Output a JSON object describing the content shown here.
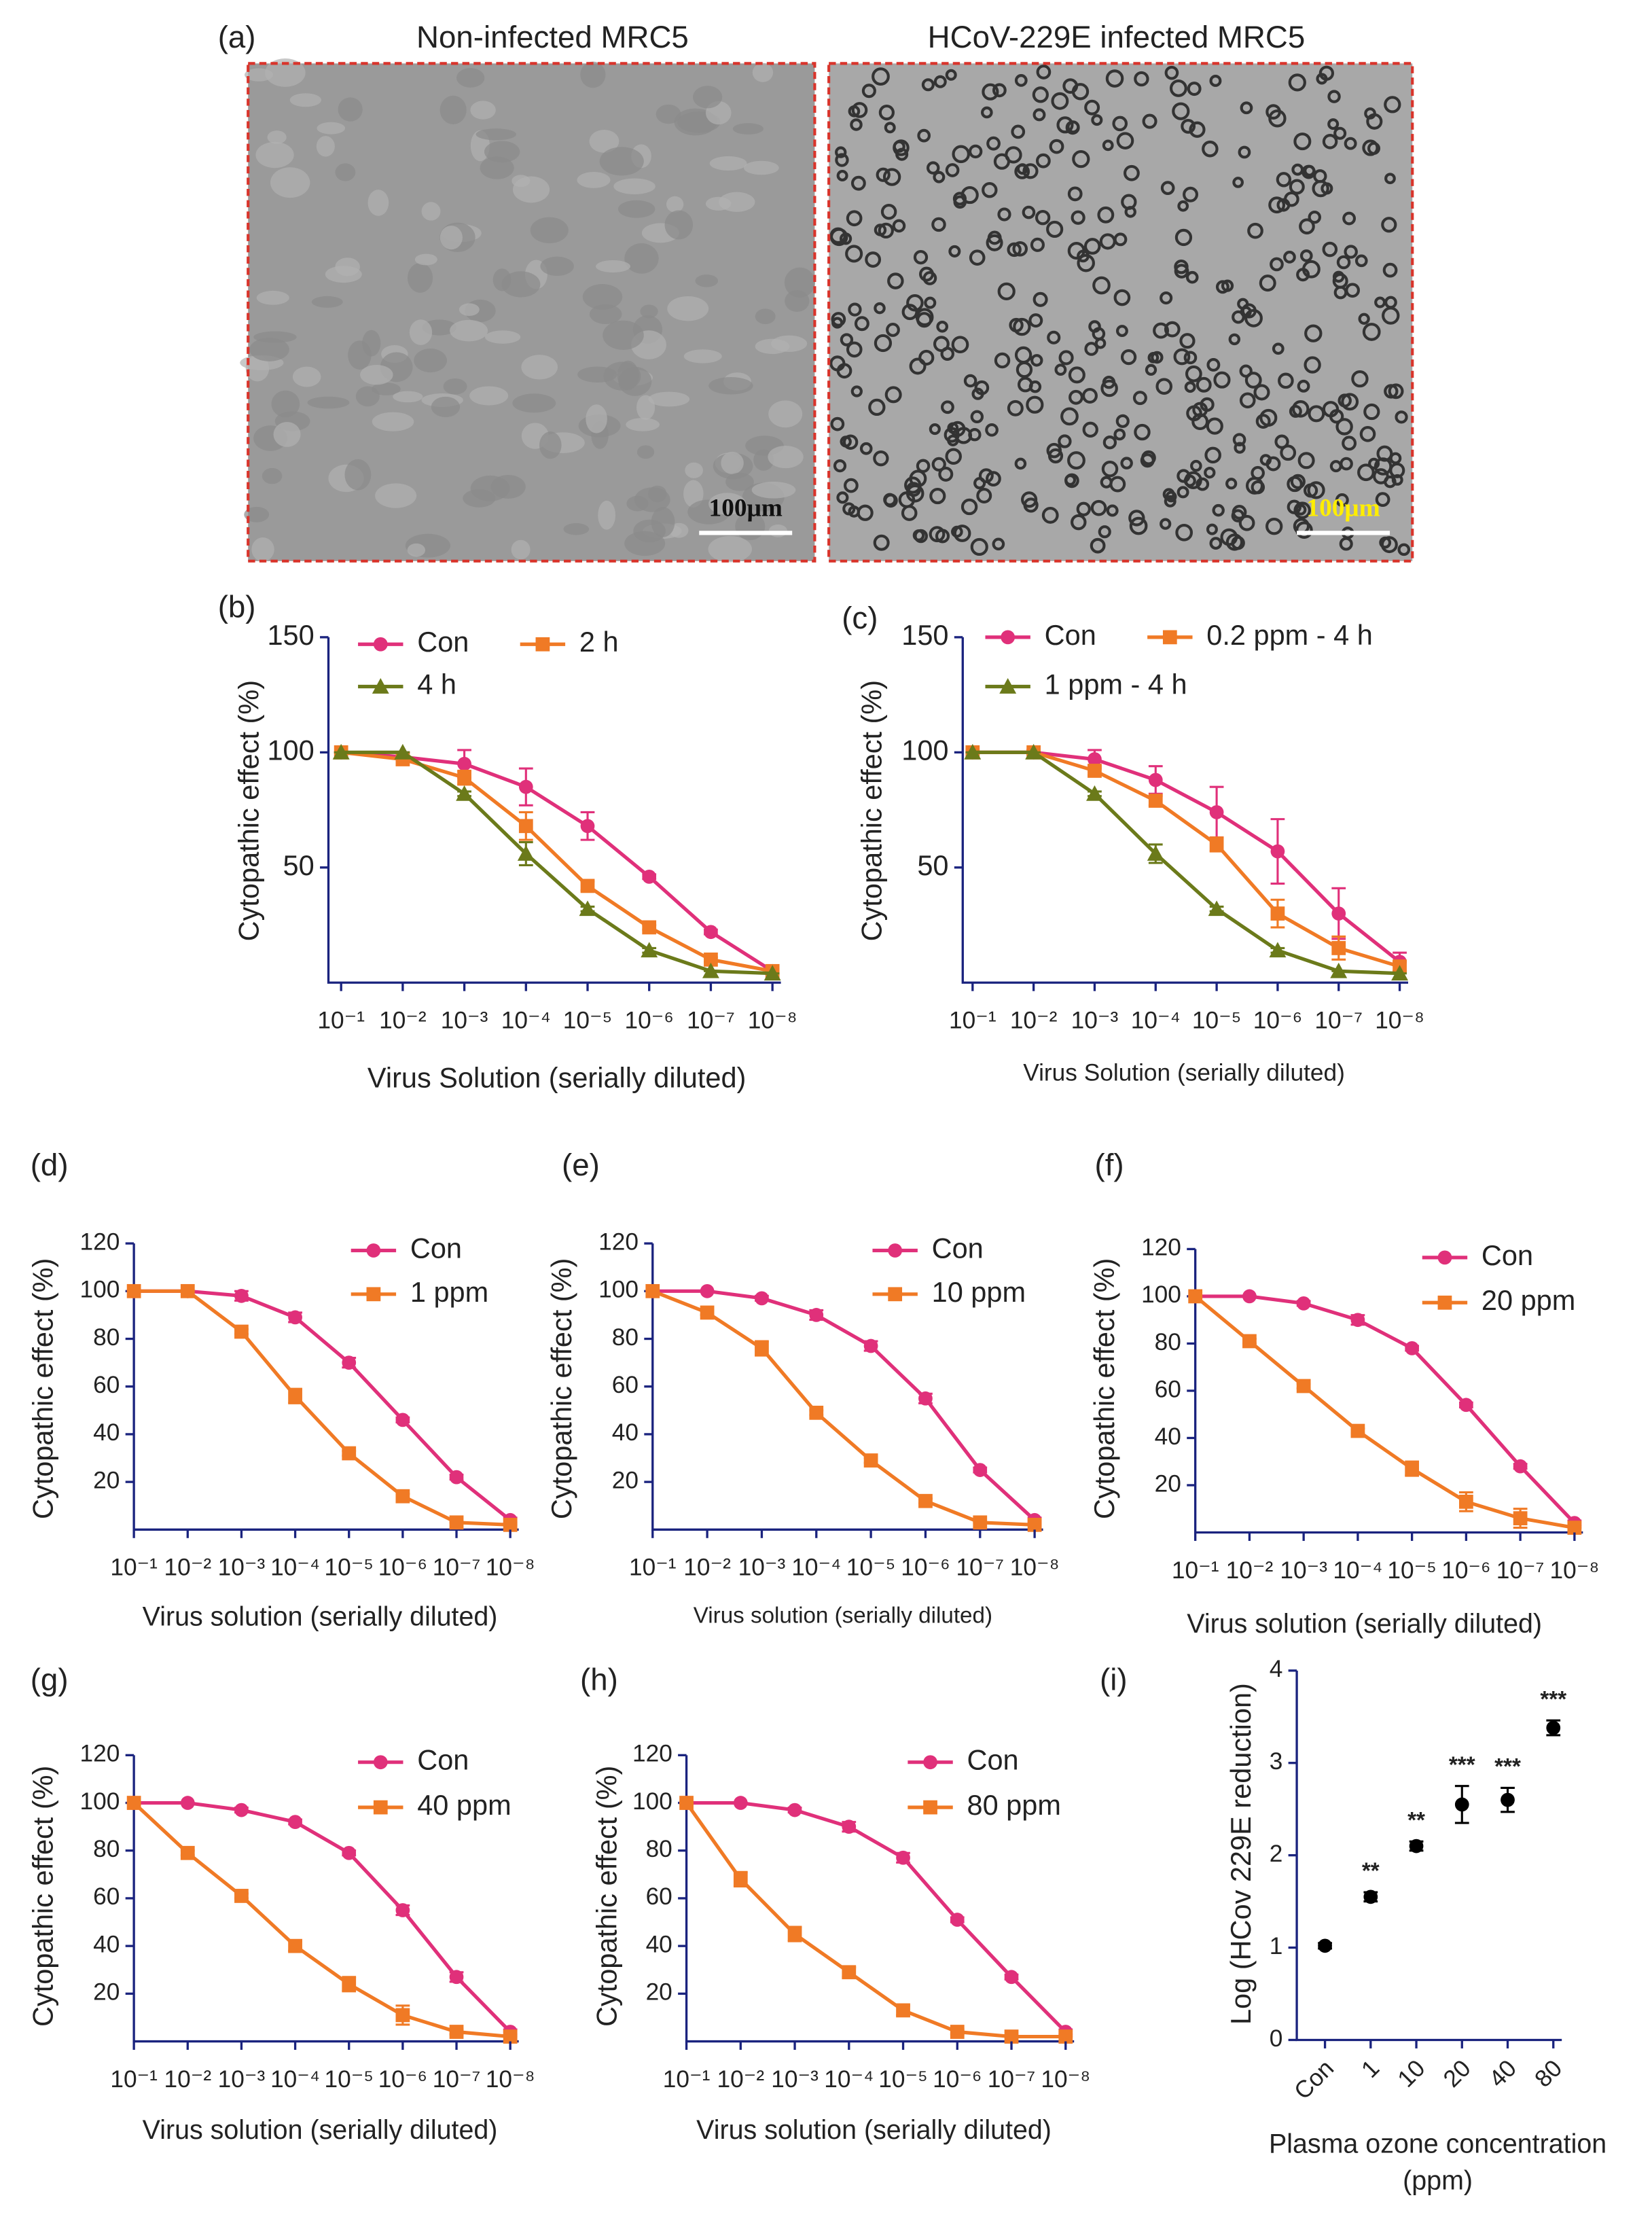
{
  "panel_a": {
    "label": "(a)",
    "images": [
      {
        "title": "Non-infected MRC5",
        "scale_bar": "100μm"
      },
      {
        "title": "HCoV-229E infected MRC5",
        "scale_bar": "100μm"
      }
    ]
  },
  "chart_data": [
    {
      "type": "line",
      "panel": "(b)",
      "ylabel": "Cytopathic effect (%)",
      "xlabel": "Virus Solution (serially diluted)",
      "categories": [
        "10⁻¹",
        "10⁻²",
        "10⁻³",
        "10⁻⁴",
        "10⁻⁵",
        "10⁻⁶",
        "10⁻⁷",
        "10⁻⁸"
      ],
      "ylim": [
        0,
        150
      ],
      "yticks": [
        50,
        100,
        150
      ],
      "series": [
        {
          "name": "Con",
          "color": "#e0307a",
          "marker": "circle",
          "values": [
            100,
            98,
            95,
            85,
            68,
            46,
            22,
            5
          ],
          "errors": [
            0,
            2,
            6,
            8,
            6,
            1,
            1,
            1
          ]
        },
        {
          "name": "2 h",
          "color": "#f07a25",
          "marker": "square",
          "values": [
            100,
            97,
            89,
            68,
            42,
            24,
            10,
            5
          ],
          "errors": [
            0,
            1,
            3,
            6,
            2,
            1,
            1,
            0
          ]
        },
        {
          "name": "4 h",
          "color": "#6b7a1a",
          "marker": "triangle",
          "values": [
            100,
            100,
            82,
            56,
            32,
            14,
            5,
            4
          ],
          "errors": [
            0,
            0,
            1,
            5,
            1,
            1,
            0,
            0
          ]
        }
      ]
    },
    {
      "type": "line",
      "panel": "(c)",
      "ylabel": "Cytopathic effect (%)",
      "xlabel": "Virus Solution (serially diluted)",
      "categories": [
        "10⁻¹",
        "10⁻²",
        "10⁻³",
        "10⁻⁴",
        "10⁻⁵",
        "10⁻⁶",
        "10⁻⁷",
        "10⁻⁸"
      ],
      "ylim": [
        0,
        150
      ],
      "yticks": [
        50,
        100,
        150
      ],
      "series": [
        {
          "name": "Con",
          "color": "#e0307a",
          "marker": "circle",
          "values": [
            100,
            100,
            97,
            88,
            74,
            57,
            30,
            9
          ],
          "errors": [
            0,
            1,
            4,
            6,
            11,
            14,
            11,
            4
          ]
        },
        {
          "name": "0.2 ppm - 4 h",
          "color": "#f07a25",
          "marker": "square",
          "values": [
            100,
            100,
            92,
            79,
            60,
            30,
            15,
            7
          ],
          "errors": [
            0,
            1,
            2,
            2,
            3,
            6,
            5,
            2
          ]
        },
        {
          "name": "1 ppm - 4 h",
          "color": "#6b7a1a",
          "marker": "triangle",
          "values": [
            100,
            100,
            82,
            56,
            32,
            14,
            5,
            4
          ],
          "errors": [
            0,
            0,
            1,
            4,
            1,
            1,
            0,
            0
          ]
        }
      ]
    },
    {
      "type": "line",
      "panel": "(d)",
      "ylabel": "Cytopathic effect (%)",
      "xlabel": "Virus solution (serially diluted)",
      "categories": [
        "10⁻¹",
        "10⁻²",
        "10⁻³",
        "10⁻⁴",
        "10⁻⁵",
        "10⁻⁶",
        "10⁻⁷",
        "10⁻⁸"
      ],
      "ylim": [
        0,
        120
      ],
      "yticks": [
        20,
        40,
        60,
        80,
        100,
        120
      ],
      "series": [
        {
          "name": "Con",
          "color": "#e0307a",
          "marker": "circle",
          "values": [
            100,
            100,
            98,
            89,
            70,
            46,
            22,
            4
          ],
          "errors": [
            0,
            0,
            2,
            2,
            2,
            1,
            1,
            1
          ]
        },
        {
          "name": "1 ppm",
          "color": "#f07a25",
          "marker": "square",
          "values": [
            100,
            100,
            83,
            56,
            32,
            14,
            3,
            2
          ],
          "errors": [
            0,
            0,
            1,
            3,
            1,
            1,
            0,
            0
          ]
        }
      ]
    },
    {
      "type": "line",
      "panel": "(e)",
      "ylabel": "Cytopathic effect (%)",
      "xlabel": "Virus solution (serially diluted)",
      "categories": [
        "10⁻¹",
        "10⁻²",
        "10⁻³",
        "10⁻⁴",
        "10⁻⁵",
        "10⁻⁶",
        "10⁻⁷",
        "10⁻⁸"
      ],
      "ylim": [
        0,
        120
      ],
      "yticks": [
        20,
        40,
        60,
        80,
        100,
        120
      ],
      "series": [
        {
          "name": "Con",
          "color": "#e0307a",
          "marker": "circle",
          "values": [
            100,
            100,
            97,
            90,
            77,
            55,
            25,
            4
          ],
          "errors": [
            0,
            0,
            1,
            2,
            2,
            2,
            1,
            1
          ]
        },
        {
          "name": "10 ppm",
          "color": "#f07a25",
          "marker": "square",
          "values": [
            100,
            91,
            76,
            49,
            29,
            12,
            3,
            2
          ],
          "errors": [
            0,
            1,
            3,
            1,
            1,
            1,
            0,
            0
          ]
        }
      ]
    },
    {
      "type": "line",
      "panel": "(f)",
      "ylabel": "Cytopathic effect (%)",
      "xlabel": "Virus solution (serially diluted)",
      "categories": [
        "10⁻¹",
        "10⁻²",
        "10⁻³",
        "10⁻⁴",
        "10⁻⁵",
        "10⁻⁶",
        "10⁻⁷",
        "10⁻⁸"
      ],
      "ylim": [
        0,
        120
      ],
      "yticks": [
        20,
        40,
        60,
        80,
        100,
        120
      ],
      "series": [
        {
          "name": "Con",
          "color": "#e0307a",
          "marker": "circle",
          "values": [
            100,
            100,
            97,
            90,
            78,
            54,
            28,
            4
          ],
          "errors": [
            0,
            0,
            1,
            2,
            1,
            1,
            1,
            1
          ]
        },
        {
          "name": "20 ppm",
          "color": "#f07a25",
          "marker": "square",
          "values": [
            100,
            81,
            62,
            43,
            27,
            13,
            6,
            2
          ],
          "errors": [
            0,
            1,
            1,
            1,
            3,
            4,
            4,
            0
          ]
        }
      ]
    },
    {
      "type": "line",
      "panel": "(g)",
      "ylabel": "Cytopathic effect (%)",
      "xlabel": "Virus solution (serially diluted)",
      "categories": [
        "10⁻¹",
        "10⁻²",
        "10⁻³",
        "10⁻⁴",
        "10⁻⁵",
        "10⁻⁶",
        "10⁻⁷",
        "10⁻⁸"
      ],
      "ylim": [
        0,
        120
      ],
      "yticks": [
        20,
        40,
        60,
        80,
        100,
        120
      ],
      "series": [
        {
          "name": "Con",
          "color": "#e0307a",
          "marker": "circle",
          "values": [
            100,
            100,
            97,
            92,
            79,
            55,
            27,
            4
          ],
          "errors": [
            0,
            0,
            1,
            1,
            1,
            2,
            2,
            1
          ]
        },
        {
          "name": "40 ppm",
          "color": "#f07a25",
          "marker": "square",
          "values": [
            100,
            79,
            61,
            40,
            24,
            11,
            4,
            2
          ],
          "errors": [
            0,
            1,
            1,
            2,
            3,
            4,
            1,
            0
          ]
        }
      ]
    },
    {
      "type": "line",
      "panel": "(h)",
      "ylabel": "Cytopathic effect (%)",
      "xlabel": "Virus solution (serially diluted)",
      "categories": [
        "10⁻¹",
        "10⁻²",
        "10⁻³",
        "10⁻⁴",
        "10⁻⁵",
        "10⁻⁶",
        "10⁻⁷",
        "10⁻⁸"
      ],
      "ylim": [
        0,
        120
      ],
      "yticks": [
        20,
        40,
        60,
        80,
        100,
        120
      ],
      "series": [
        {
          "name": "Con",
          "color": "#e0307a",
          "marker": "circle",
          "values": [
            100,
            100,
            97,
            90,
            77,
            51,
            27,
            4
          ],
          "errors": [
            0,
            0,
            1,
            2,
            2,
            1,
            1,
            1
          ]
        },
        {
          "name": "80 ppm",
          "color": "#f07a25",
          "marker": "square",
          "values": [
            100,
            68,
            45,
            29,
            13,
            4,
            2,
            2
          ],
          "errors": [
            0,
            3,
            3,
            2,
            2,
            1,
            0,
            0
          ]
        }
      ]
    },
    {
      "type": "dot",
      "panel": "(i)",
      "ylabel": "Log (HCov 229E reduction)",
      "xlabel": [
        "Plasma ozone concentration",
        "(ppm)"
      ],
      "categories": [
        "Con",
        "1",
        "10",
        "20",
        "40",
        "80"
      ],
      "ylim": [
        0,
        4
      ],
      "yticks": [
        0,
        1,
        2,
        3,
        4
      ],
      "color": "#000000",
      "values": [
        1.02,
        1.55,
        2.1,
        2.55,
        2.6,
        3.38
      ],
      "errors": [
        0.03,
        0.05,
        0.05,
        0.2,
        0.13,
        0.08
      ],
      "annotations": [
        null,
        "**",
        "**",
        "***",
        "***",
        "***"
      ]
    }
  ]
}
